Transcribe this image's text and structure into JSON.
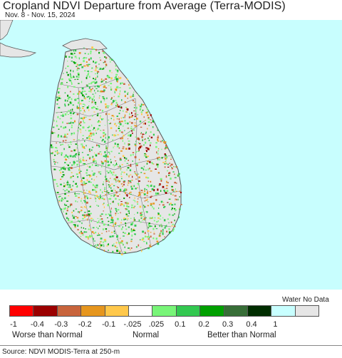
{
  "title": "Cropland NDVI Departure from Average (Terra-MODIS)",
  "subtitle": "Nov. 8 - Nov. 15, 2024",
  "legend": {
    "water_no_data_label": "Water No Data",
    "colors": [
      "#ff0000",
      "#9b0000",
      "#c8643c",
      "#e6961e",
      "#ffc84b",
      "#ffffff",
      "#78f578",
      "#32c850",
      "#00a000",
      "#376e37",
      "#002d00",
      "#c8ffff",
      "#e6e6e6"
    ],
    "ticks": [
      "-1",
      "-0.4",
      "-0.3",
      "-0.2",
      "-0.1",
      "-.025",
      ".025",
      "0.1",
      "0.2",
      "0.3",
      "0.4",
      "1"
    ],
    "categories": [
      "Worse than Normal",
      "Normal",
      "Better than Normal"
    ]
  },
  "source": "Source: NDVI MODIS-Terra at 250-m",
  "colors": {
    "water": "#c8fefe",
    "land_no_data": "#e6e6e6",
    "boundary": "#555555"
  }
}
